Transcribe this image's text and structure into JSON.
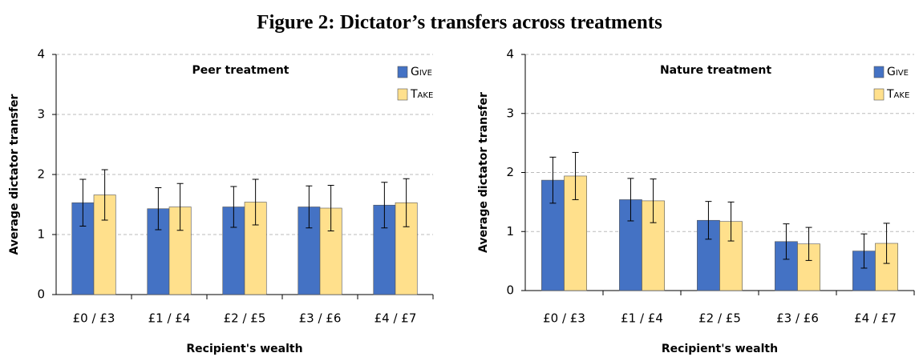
{
  "title": "Figure 2: Dictator’s transfers across treatments",
  "chart_data": [
    {
      "type": "bar",
      "title": "Peer treatment",
      "xlabel": "Recipient's wealth",
      "ylabel": "Average dictator transfer",
      "categories": [
        "£0 / £3",
        "£1 / £4",
        "£2 / £5",
        "£3 / £6",
        "£4 / £7"
      ],
      "series": [
        {
          "name": "Give",
          "color": "#4472c4",
          "values": [
            1.53,
            1.43,
            1.46,
            1.46,
            1.49
          ],
          "errors": [
            0.39,
            0.35,
            0.34,
            0.35,
            0.38
          ]
        },
        {
          "name": "Take",
          "color": "#ffe08c",
          "values": [
            1.66,
            1.46,
            1.54,
            1.44,
            1.53
          ],
          "errors": [
            0.42,
            0.39,
            0.38,
            0.38,
            0.4
          ]
        }
      ],
      "ylim": [
        0,
        4
      ],
      "yticks": [
        0,
        1,
        2,
        3,
        4
      ],
      "grid": true
    },
    {
      "type": "bar",
      "title": "Nature treatment",
      "xlabel": "Recipient's wealth",
      "ylabel": "Average dictator transfer",
      "categories": [
        "£0 / £3",
        "£1 / £4",
        "£2 / £5",
        "£3 / £6",
        "£4 / £7"
      ],
      "series": [
        {
          "name": "Give",
          "color": "#4472c4",
          "values": [
            1.87,
            1.54,
            1.19,
            0.83,
            0.67
          ],
          "errors": [
            0.39,
            0.36,
            0.32,
            0.3,
            0.29
          ]
        },
        {
          "name": "Take",
          "color": "#ffe08c",
          "values": [
            1.94,
            1.52,
            1.17,
            0.79,
            0.8
          ],
          "errors": [
            0.4,
            0.37,
            0.33,
            0.28,
            0.34
          ]
        }
      ],
      "ylim": [
        0,
        4
      ],
      "yticks": [
        0,
        1,
        2,
        3,
        4
      ],
      "grid": true
    }
  ]
}
